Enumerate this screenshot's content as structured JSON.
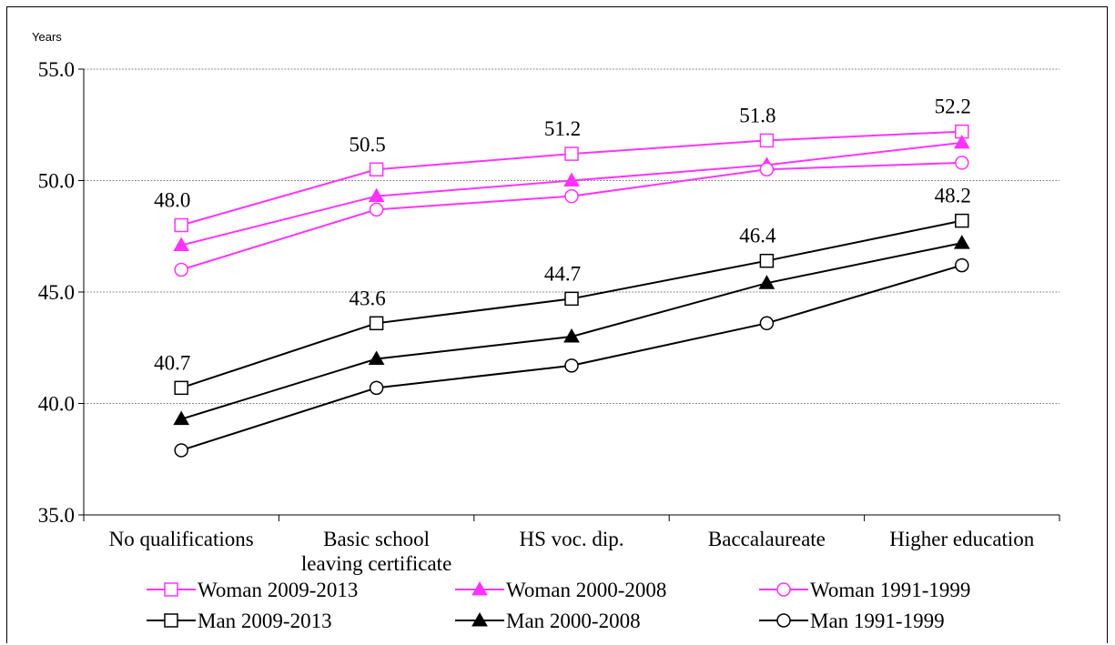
{
  "chart_data": {
    "type": "line",
    "ylabel": "Years",
    "ylim": [
      35.0,
      55.0
    ],
    "yticks": [
      "35.0",
      "40.0",
      "45.0",
      "50.0",
      "55.0"
    ],
    "grid": true,
    "legend_position": "bottom",
    "categories": [
      "No qualifications",
      "Basic school leaving certificate",
      "HS voc. dip.",
      "Baccalaureate",
      "Higher education"
    ],
    "series": [
      {
        "name": "Woman 2009-2013",
        "values": [
          48.0,
          50.5,
          51.2,
          51.8,
          52.2
        ],
        "color": "#ff33ff",
        "marker": "square-open",
        "labels": [
          "48.0",
          "50.5",
          "51.2",
          "51.8",
          "52.2"
        ]
      },
      {
        "name": "Woman 2000-2008",
        "values": [
          47.1,
          49.3,
          50.0,
          50.7,
          51.7
        ],
        "color": "#ff33ff",
        "marker": "triangle-filled"
      },
      {
        "name": "Woman 1991-1999",
        "values": [
          46.0,
          48.7,
          49.3,
          50.5,
          50.8
        ],
        "color": "#ff33ff",
        "marker": "circle-open"
      },
      {
        "name": "Man 2009-2013",
        "values": [
          40.7,
          43.6,
          44.7,
          46.4,
          48.2
        ],
        "color": "#000000",
        "marker": "square-open",
        "labels": [
          "40.7",
          "43.6",
          "44.7",
          "46.4",
          "48.2"
        ]
      },
      {
        "name": "Man 2000-2008",
        "values": [
          39.3,
          42.0,
          43.0,
          45.4,
          47.2
        ],
        "color": "#000000",
        "marker": "triangle-filled"
      },
      {
        "name": "Man 1991-1999",
        "values": [
          37.9,
          40.7,
          41.7,
          43.6,
          46.2
        ],
        "color": "#000000",
        "marker": "circle-open"
      }
    ]
  }
}
